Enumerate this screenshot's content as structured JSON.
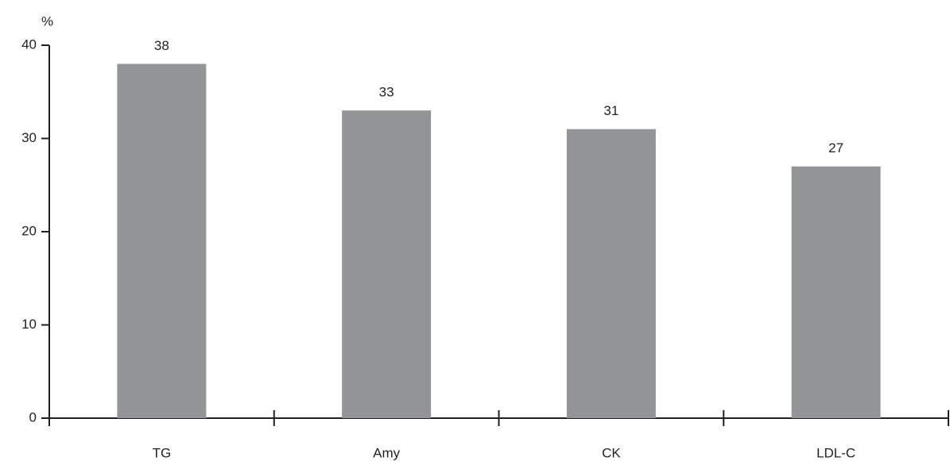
{
  "chart_data": {
    "type": "bar",
    "ylabel": "%",
    "categories": [
      "TG",
      "Amy",
      "CK",
      "LDL-C"
    ],
    "values": [
      38,
      33,
      31,
      27
    ],
    "color": "#939497",
    "ylim": [
      0,
      40
    ],
    "yticks": [
      0,
      10,
      20,
      30,
      40
    ],
    "grid": false
  }
}
